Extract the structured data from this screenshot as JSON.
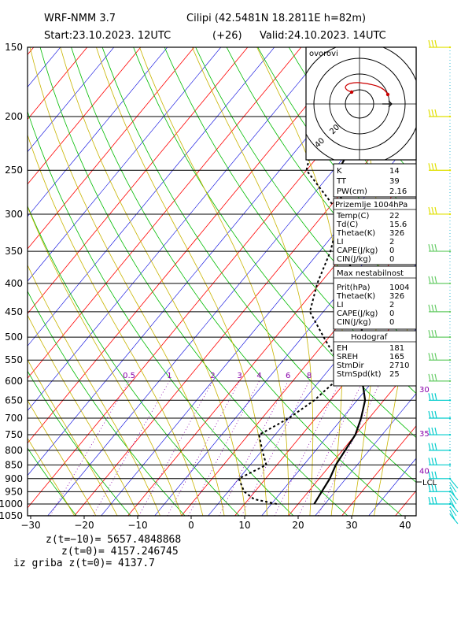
{
  "header": {
    "model": "WRF-NMM 3.7",
    "location": "Cilipi (42.5481N 18.2811E  h=82m)",
    "start": "Start:23.10.2023.   12UTC",
    "offset": "(+26)",
    "valid": "Valid:24.10.2023.   14UTC"
  },
  "colors": {
    "isotherm": "#ff0000",
    "dry_adiabat": "#00bb00",
    "moist_adiabat": "#c8b400",
    "mixing_ratio": "#8800aa",
    "isohume_blue": "#0000dd",
    "temperature": "#000000",
    "dewpoint": "#000000",
    "hodograph": "#cc0000",
    "wind_top": "#e0e000",
    "wind_mid": "#66cc66",
    "wind_low": "#00cccc",
    "wind_surface": "#00cccc"
  },
  "chart_data": {
    "type": "skew-t",
    "x_ticks": [
      "−30",
      "−20",
      "−10",
      "0",
      "10",
      "20",
      "30",
      "40"
    ],
    "x_values": [
      -30,
      -20,
      -10,
      0,
      10,
      20,
      30,
      40
    ],
    "pressure_levels": [
      150,
      200,
      250,
      300,
      350,
      400,
      450,
      500,
      550,
      600,
      650,
      700,
      750,
      800,
      850,
      900,
      950,
      1000,
      1050
    ],
    "mixing_ratio_labels": [
      "0.5",
      "1",
      "2",
      "3",
      "4",
      "6",
      "8"
    ],
    "temperature_profile": [
      {
        "p": 1000,
        "t": 23
      },
      {
        "p": 950,
        "t": 22.5
      },
      {
        "p": 900,
        "t": 22
      },
      {
        "p": 850,
        "t": 21
      },
      {
        "p": 800,
        "t": 20.5
      },
      {
        "p": 750,
        "t": 20
      },
      {
        "p": 700,
        "t": 18.5
      },
      {
        "p": 650,
        "t": 16.5
      },
      {
        "p": 600,
        "t": 13
      },
      {
        "p": 550,
        "t": 10
      },
      {
        "p": 500,
        "t": 6
      },
      {
        "p": 450,
        "t": 2.5
      },
      {
        "p": 400,
        "t": -3.5
      },
      {
        "p": 350,
        "t": -10
      },
      {
        "p": 300,
        "t": -16.5
      },
      {
        "p": 250,
        "t": -24
      },
      {
        "p": 200,
        "t": -27
      },
      {
        "p": 150,
        "t": -14
      }
    ],
    "dewpoint_profile": [
      {
        "p": 1000,
        "t": 16
      },
      {
        "p": 980,
        "t": 11
      },
      {
        "p": 950,
        "t": 8
      },
      {
        "p": 900,
        "t": 5
      },
      {
        "p": 850,
        "t": 8
      },
      {
        "p": 800,
        "t": 5
      },
      {
        "p": 750,
        "t": 2
      },
      {
        "p": 700,
        "t": 5
      },
      {
        "p": 650,
        "t": 7
      },
      {
        "p": 600,
        "t": 8
      },
      {
        "p": 550,
        "t": 5
      },
      {
        "p": 500,
        "t": -1
      },
      {
        "p": 450,
        "t": -7.5
      },
      {
        "p": 400,
        "t": -10.5
      },
      {
        "p": 350,
        "t": -13
      },
      {
        "p": 300,
        "t": -17
      },
      {
        "p": 250,
        "t": -30
      },
      {
        "p": 200,
        "t": -36
      },
      {
        "p": 150,
        "t": -20
      }
    ],
    "lcl_label": "LCL",
    "wind_speed_labels": [
      {
        "p": 620,
        "text": "30"
      },
      {
        "p": 745,
        "text": "35"
      },
      {
        "p": 870,
        "text": "40"
      }
    ],
    "wind_barbs": [
      {
        "p": 150,
        "band": "top"
      },
      {
        "p": 200,
        "band": "top"
      },
      {
        "p": 250,
        "band": "top"
      },
      {
        "p": 300,
        "band": "top"
      },
      {
        "p": 350,
        "band": "mid"
      },
      {
        "p": 400,
        "band": "mid"
      },
      {
        "p": 450,
        "band": "mid"
      },
      {
        "p": 500,
        "band": "mid"
      },
      {
        "p": 550,
        "band": "mid"
      },
      {
        "p": 600,
        "band": "mid"
      },
      {
        "p": 650,
        "band": "low"
      },
      {
        "p": 700,
        "band": "low"
      },
      {
        "p": 750,
        "band": "low"
      },
      {
        "p": 800,
        "band": "low"
      },
      {
        "p": 850,
        "band": "low"
      },
      {
        "p": 900,
        "band": "low"
      },
      {
        "p": 950,
        "band": "low"
      },
      {
        "p": 1000,
        "band": "low"
      }
    ],
    "hodograph": {
      "title": "ovorovi",
      "ring_labels": [
        "20",
        "40"
      ]
    }
  },
  "indices": {
    "k": {
      "label": "K",
      "value": "14"
    },
    "tt": {
      "label": "TT",
      "value": "39"
    },
    "pw": {
      "label": "PW(cm)",
      "value": "2.16"
    }
  },
  "surface": {
    "title": "Prizemlje 1004hPa",
    "rows": [
      {
        "label": "Temp(C)",
        "value": "22"
      },
      {
        "label": "Td(C)",
        "value": "15.6"
      },
      {
        "label": "Thetae(K)",
        "value": "326"
      },
      {
        "label": "LI",
        "value": "2"
      },
      {
        "label": "CAPE(J/kg)",
        "value": "0"
      },
      {
        "label": "CIN(J/kg)",
        "value": "0"
      }
    ]
  },
  "max_instability": {
    "title": "Max nestabilnost",
    "rows": [
      {
        "label": "Prit(hPa)",
        "value": "1004"
      },
      {
        "label": "Thetae(K)",
        "value": "326"
      },
      {
        "label": "LI",
        "value": "2"
      },
      {
        "label": "CAPE(J/kg)",
        "value": "0"
      },
      {
        "label": "CIN(J/kg)",
        "value": "0"
      }
    ]
  },
  "hodograph_box": {
    "title": "Hodograf",
    "rows": [
      {
        "label": "EH",
        "value": "181"
      },
      {
        "label": "SREH",
        "value": "165"
      },
      {
        "label": "StmDir",
        "value": "2710"
      },
      {
        "label": "StmSpd(kt)",
        "value": "25"
      }
    ]
  },
  "footer": {
    "line1": "z(t=−10)=  5657.4848868",
    "line2": "z(t=0)=   4157.246745",
    "line3": "iz griba  z(t=0)=  4137.7"
  }
}
